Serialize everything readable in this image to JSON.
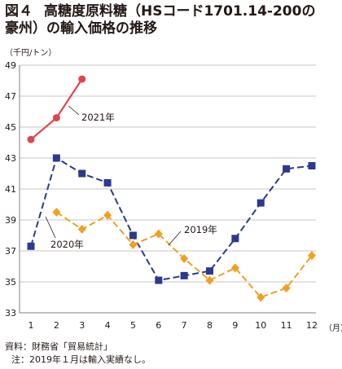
{
  "title": {
    "figure_label": "図４",
    "line1": "高糖度原料糖（HSコード1701.14-200の",
    "line2": "豪州）の輸入価格の推移"
  },
  "source": "資料：財務省「貿易統計」",
  "note": "注：2019年１月は輸入実績なし。",
  "chart_data": {
    "type": "line",
    "ylabel": "（千円/トン）",
    "xlabel": "（月）",
    "ylim": [
      33,
      49
    ],
    "yticks": [
      33,
      35,
      37,
      39,
      41,
      43,
      45,
      47,
      49
    ],
    "x": [
      1,
      2,
      3,
      4,
      5,
      6,
      7,
      8,
      9,
      10,
      11,
      12
    ],
    "grid": "horizontal",
    "series": [
      {
        "name": "2021年",
        "color": "#e0454f",
        "style": "solid",
        "marker": "circle",
        "values": [
          44.2,
          45.6,
          48.1,
          null,
          null,
          null,
          null,
          null,
          null,
          null,
          null,
          null
        ]
      },
      {
        "name": "2020年",
        "color": "#2b3a8f",
        "style": "dashed",
        "marker": "square",
        "values": [
          37.3,
          43.0,
          42.0,
          41.4,
          38.0,
          35.1,
          35.4,
          35.7,
          37.8,
          40.1,
          42.3,
          42.5
        ]
      },
      {
        "name": "2019年",
        "color": "#f0a020",
        "style": "dashed",
        "marker": "diamond",
        "values": [
          null,
          39.5,
          38.4,
          39.3,
          37.4,
          38.1,
          36.5,
          35.1,
          35.9,
          34.0,
          34.6,
          36.7
        ]
      }
    ]
  }
}
